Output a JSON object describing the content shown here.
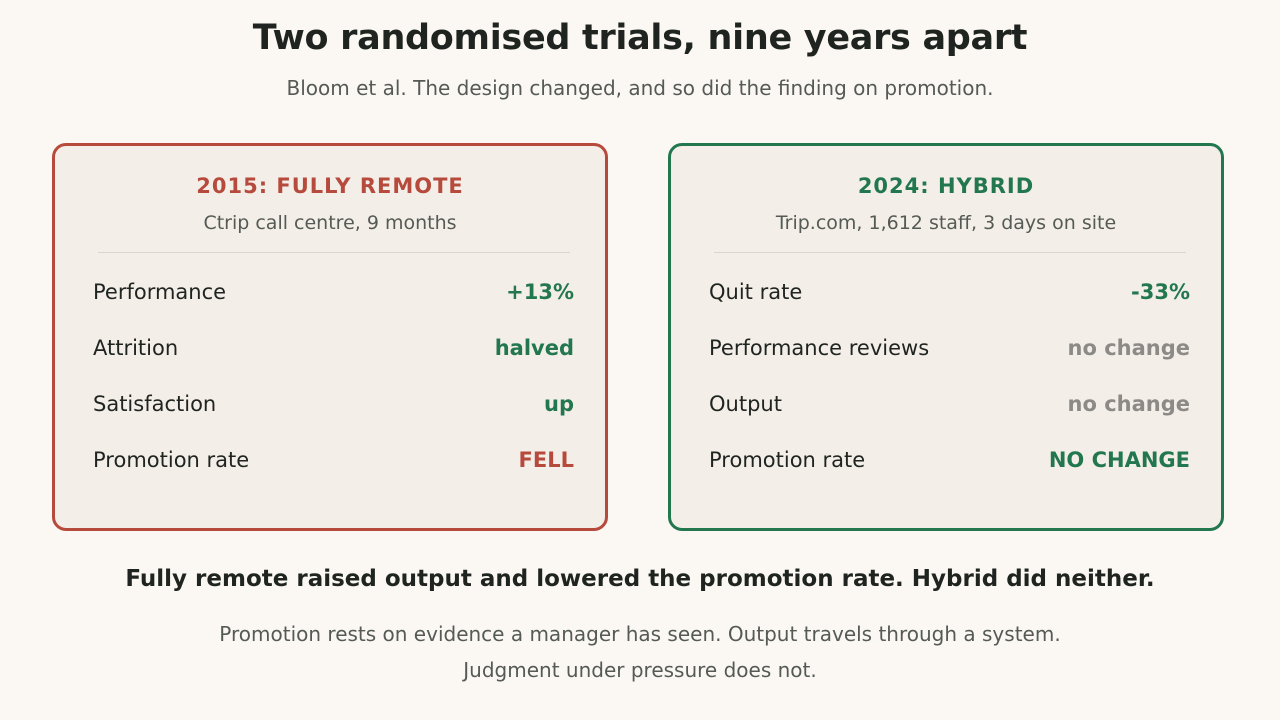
{
  "header": {
    "title": "Two randomised trials, nine years apart",
    "subtitle": "Bloom et al. The design changed, and so did the finding on promotion."
  },
  "cards": [
    {
      "title": "2015: FULLY REMOTE",
      "subtitle": "Ctrip call centre, 9 months",
      "accent": "#b64a3c",
      "rows": [
        {
          "label": "Performance",
          "value": "+13%",
          "tone": "green"
        },
        {
          "label": "Attrition",
          "value": "halved",
          "tone": "green"
        },
        {
          "label": "Satisfaction",
          "value": "up",
          "tone": "green"
        },
        {
          "label": "Promotion rate",
          "value": "FELL",
          "tone": "red"
        }
      ]
    },
    {
      "title": "2024: HYBRID",
      "subtitle": "Trip.com, 1,612 staff, 3 days on site",
      "accent": "#22774f",
      "rows": [
        {
          "label": "Quit rate",
          "value": "-33%",
          "tone": "green"
        },
        {
          "label": "Performance reviews",
          "value": "no change",
          "tone": "grey"
        },
        {
          "label": "Output",
          "value": "no change",
          "tone": "grey"
        },
        {
          "label": "Promotion rate",
          "value": "NO CHANGE",
          "tone": "green"
        }
      ]
    }
  ],
  "footer": {
    "takeaway": "Fully remote raised output and lowered the promotion rate. Hybrid did neither.",
    "note_line1": "Promotion rests on evidence a manager has seen. Output travels through a system.",
    "note_line2": "Judgment under pressure does not."
  },
  "colors": {
    "background": "#fbf8f3",
    "red": "#b64a3c",
    "green": "#22774f",
    "grey": "#8b8a86"
  }
}
